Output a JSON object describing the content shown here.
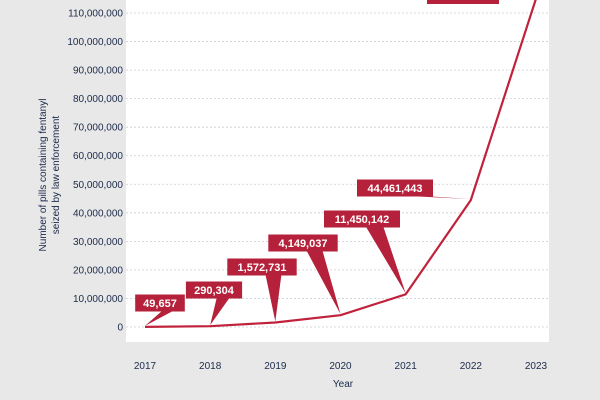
{
  "colors": {
    "line": "#c0223b",
    "callout_fill": "#b5213a",
    "plot_bg": "#ffffff",
    "page_bg": "#e8e8e8",
    "text": "#1b2a4a"
  },
  "chart_data": {
    "type": "line",
    "title": "",
    "xlabel": "Year",
    "ylabel": "Number of pills containing fentanyl seized by law enforcement",
    "ylabel_lines": [
      "Number of pills containing fentanyl",
      "seized by law enforcement"
    ],
    "x": [
      2017,
      2018,
      2019,
      2020,
      2021,
      2022,
      2023
    ],
    "x_tick_labels": [
      "2017",
      "2018",
      "2019",
      "2020",
      "2021",
      "2022",
      "2023"
    ],
    "series": [
      {
        "values": [
          49657,
          290304,
          1572731,
          4149037,
          11450142,
          44461443,
          115000000
        ]
      }
    ],
    "data_labels": [
      "49,657",
      "290,304",
      "1,572,731",
      "4,149,037",
      "11,450,142",
      "44,461,443"
    ],
    "ylim": [
      0,
      115000000
    ],
    "y_ticks": [
      0,
      10000000,
      20000000,
      30000000,
      40000000,
      50000000,
      60000000,
      70000000,
      80000000,
      90000000,
      100000000,
      110000000
    ],
    "y_tick_labels": [
      "0",
      "10,000,000",
      "20,000,000",
      "30,000,000",
      "40,000,000",
      "50,000,000",
      "60,000,000",
      "70,000,000",
      "80,000,000",
      "90,000,000",
      "100,000,000",
      "110,000,000"
    ],
    "grid": true,
    "grid_style": "horizontal dashed",
    "legend": "none"
  }
}
